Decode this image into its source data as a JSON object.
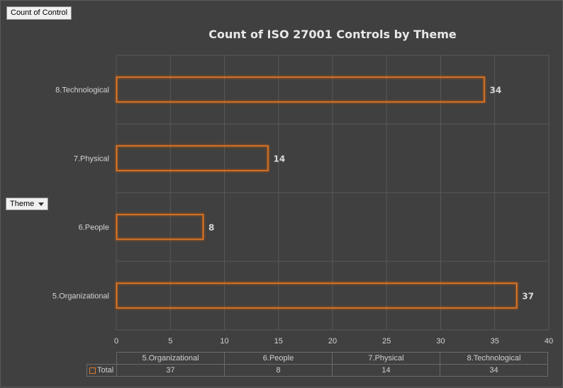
{
  "fields": {
    "value_field": "Count of Control",
    "row_field": "Theme"
  },
  "chart_data": {
    "type": "bar",
    "orientation": "horizontal",
    "title": "Count of ISO 27001 Controls by Theme",
    "categories": [
      "5.Organizational",
      "6.People",
      "7.Physical",
      "8.Technological"
    ],
    "series": [
      {
        "name": "Total",
        "values": [
          37,
          8,
          14,
          34
        ]
      }
    ],
    "xlim": [
      0,
      40
    ],
    "x_ticks": [
      "0",
      "5",
      "10",
      "15",
      "20",
      "25",
      "30",
      "35",
      "40"
    ],
    "grid": true,
    "data_labels": true,
    "bar_style": "outline with orange glow",
    "colors": {
      "bar_outline": "#e07a2a",
      "bar_glow": "#c85a10",
      "background": "#404040",
      "gridline": "#585858"
    }
  },
  "data_table": {
    "row_header": "Total"
  }
}
